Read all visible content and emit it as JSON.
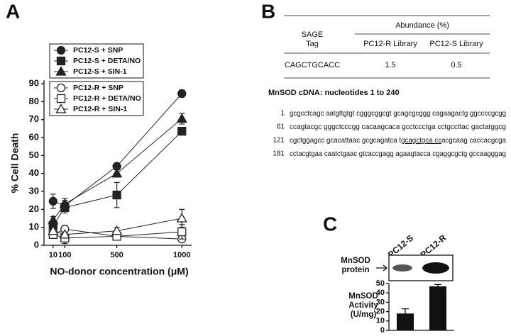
{
  "panel_labels": [
    "A",
    "B",
    "C"
  ],
  "chart_data": [
    {
      "type": "line",
      "xlabel": "NO-donor concentration (μM)",
      "ylabel": "% Cell Death",
      "x": [
        10,
        100,
        500,
        1000
      ],
      "xlim": [
        -60,
        1075
      ],
      "xticks": [
        10,
        100,
        500,
        1000
      ],
      "ylim": [
        0,
        92
      ],
      "yticks": [
        0,
        10,
        20,
        30,
        40,
        50,
        60,
        70,
        80,
        90
      ],
      "series": [
        {
          "name": "PC12-S + SNP",
          "color": "#222222",
          "marker": "circle",
          "filled": true,
          "values": [
            24.5,
            22,
            44,
            84.5
          ],
          "errors": [
            4,
            3,
            1,
            2
          ]
        },
        {
          "name": "PC12-S + DETA/NO",
          "color": "#222222",
          "marker": "square",
          "filled": true,
          "values": [
            11,
            21,
            28,
            63.5
          ],
          "errors": [
            2,
            3,
            7,
            2
          ]
        },
        {
          "name": "PC12-S + SIN-1",
          "color": "#222222",
          "marker": "triangle",
          "filled": true,
          "values": [
            14,
            23,
            40,
            70.5
          ],
          "errors": [
            2,
            3,
            2,
            3
          ]
        },
        {
          "name": "PC12-R + SNP",
          "color": "#222222",
          "marker": "circle",
          "filled": false,
          "values": [
            6,
            9,
            5,
            3.5
          ],
          "errors": [
            2,
            2,
            1,
            1
          ]
        },
        {
          "name": "PC12-R + DETA/NO",
          "color": "#222222",
          "marker": "square",
          "filled": false,
          "values": [
            6,
            4,
            5,
            7.5
          ],
          "errors": [
            2,
            3,
            1,
            4
          ]
        },
        {
          "name": "PC12-R + SIN-1",
          "color": "#222222",
          "marker": "triangle",
          "filled": false,
          "values": [
            8,
            6,
            8,
            15
          ],
          "errors": [
            1,
            1,
            2,
            5
          ]
        }
      ]
    },
    {
      "type": "bar",
      "ylabel": [
        "MnSOD",
        "Activity",
        "(U/mg)"
      ],
      "categories": [
        "PC12-S",
        "PC12-R"
      ],
      "values": [
        18,
        47
      ],
      "errors": [
        5,
        2
      ],
      "color": "#111111",
      "ylim": [
        0,
        50
      ],
      "yticks": [
        0,
        10,
        20,
        30,
        40,
        50
      ]
    }
  ],
  "blot_label": [
    "MnSOD",
    "protein"
  ],
  "table": {
    "header_group": "Abundance (%)",
    "tag_header": [
      "SAGE",
      "Tag"
    ],
    "columns": [
      "PC12-R Library",
      "PC12-S Library"
    ],
    "rows": [
      [
        "CAGCTGCACC",
        1.5,
        0.5
      ]
    ]
  },
  "sequence": {
    "title": "MnSOD cDNA: nucleotides 1 to 240",
    "lines": [
      {
        "number": 1,
        "segments": [
          "gcgcctcagc aatgttgtgt cgggcggcgt gcagcgcggg cagaagactg ggccccgcgg"
        ]
      },
      {
        "number": 61,
        "segments": [
          "ccagtacgc gggctcccgg cacaagcaca gcctccctga cctgccttac gactatggcg"
        ]
      },
      {
        "number": 121,
        "segments": [
          "cgctggagcc gcacattaac gcgcagatca tg",
          "cagctgca cc",
          "acgcaag caccacgcga"
        ],
        "underlined": 1
      },
      {
        "number": 181,
        "segments": [
          "cctacgtgaa caatctgaac gtcaccgagg agaagtacca cgaggcgctg gccaagggag"
        ]
      }
    ]
  }
}
